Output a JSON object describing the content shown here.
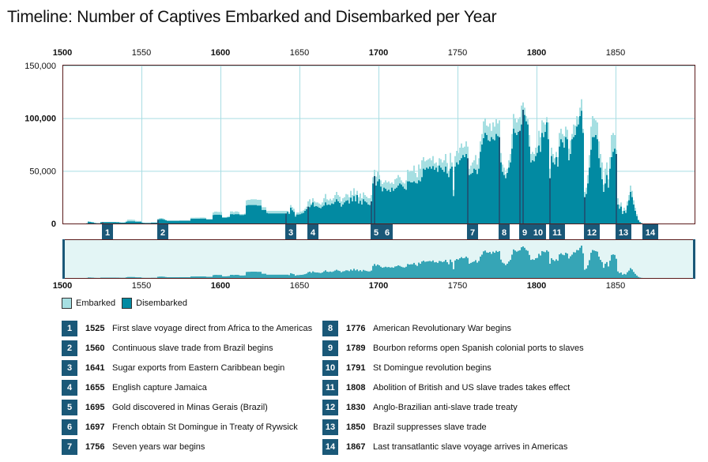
{
  "title": "Timeline: Number of Captives Embarked and Disembarked per Year",
  "colors": {
    "embarked": "#a6dfe2",
    "disembarked": "#028aa2",
    "event": "#1a5878",
    "grid": "#a9dde3",
    "frame": "#5a1a1a",
    "overview_bg": "#e3f5f5",
    "overview_fill": "#36a5b6"
  },
  "legend": {
    "embarked": "Embarked",
    "disembarked": "Disembarked"
  },
  "chart_data": {
    "type": "bar",
    "stacking": "overlay",
    "xlabel": "",
    "ylabel": "",
    "xlim": [
      1500,
      1900
    ],
    "ylim": [
      0,
      150000
    ],
    "grid": true,
    "legend_placement": "bottom-left",
    "x_ticks": [
      "1500",
      "1550",
      "1600",
      "1650",
      "1700",
      "1750",
      "1800",
      "1850"
    ],
    "y_ticks": [
      "0",
      "50,000",
      "100,000",
      "150,000"
    ],
    "overview_x_ticks": [
      "1500",
      "1550",
      "1600",
      "1650",
      "1700",
      "1750",
      "1800",
      "1850"
    ],
    "series": [
      {
        "name": "Embarked",
        "values_by_decade": {
          "1500": [
            0,
            0,
            0,
            0,
            0,
            0,
            0,
            0,
            0,
            0
          ],
          "1510": [
            0,
            0,
            0,
            0,
            0,
            300,
            2000,
            1800,
            1400,
            1200
          ],
          "1520": [
            600,
            400,
            300,
            300,
            1400,
            1400,
            1400,
            1400,
            1400,
            1400
          ],
          "1530": [
            1400,
            1400,
            1400,
            1400,
            1300,
            1300,
            1000,
            900,
            900,
            1000
          ],
          "1540": [
            2500,
            3700,
            3700,
            3700,
            3600,
            3500,
            2600,
            2400,
            2400,
            2400
          ],
          "1550": [
            900,
            700,
            600,
            600,
            600,
            600,
            900,
            900,
            900,
            900
          ],
          "1560": [
            4500,
            5000,
            5200,
            5000,
            4500,
            3500,
            2800,
            2800,
            2800,
            2800
          ],
          "1570": [
            2800,
            2800,
            2800,
            2800,
            2900,
            2900,
            2900,
            2900,
            2900,
            2900
          ],
          "1580": [
            2900,
            5500,
            5500,
            5500,
            5600,
            5600,
            5600,
            5700,
            5700,
            5700
          ],
          "1590": [
            5500,
            4300,
            4300,
            4300,
            4300,
            10500,
            11300,
            11300,
            11000,
            11000
          ],
          "1600": [
            11000,
            6000,
            6000,
            6000,
            6500,
            7000,
            11500,
            11500,
            10800,
            11500
          ],
          "1610": [
            11500,
            11000,
            9000,
            9000,
            9000,
            9500,
            22000,
            22500,
            22500,
            23000
          ],
          "1620": [
            23000,
            23000,
            23000,
            22500,
            22500,
            22500,
            15500,
            15500,
            15500,
            12000
          ],
          "1630": [
            12000,
            12000,
            12000,
            12000,
            12000,
            12000,
            12000,
            12000,
            12000,
            12000
          ],
          "1640": [
            12000,
            12000,
            12000,
            10500,
            17500,
            15500,
            14000,
            8500,
            10500,
            10500
          ],
          "1650": [
            11300,
            11500,
            12500,
            14000,
            16000,
            21000,
            23000,
            19000,
            24000,
            21000
          ],
          "1660": [
            20000,
            20000,
            19000,
            18000,
            20000,
            24000,
            28000,
            23000,
            22000,
            23500
          ],
          "1670": [
            22000,
            24000,
            27000,
            30000,
            27000,
            25500,
            21000,
            24000,
            25000,
            28000
          ],
          "1680": [
            27500,
            25000,
            31000,
            27000,
            33500,
            27500,
            31000,
            25000,
            28500,
            24000
          ],
          "1690": [
            29500,
            27000,
            25500,
            24000,
            24000,
            27000,
            44000,
            51000,
            44500,
            49000
          ],
          "1700": [
            46000,
            41000,
            37500,
            39000,
            41000,
            39000,
            40000,
            38000,
            39000,
            37500
          ],
          "1710": [
            42000,
            43000,
            46000,
            44000,
            41000,
            39000,
            38000,
            41000,
            51000,
            49000
          ],
          "1720": [
            50000,
            50000,
            55000,
            48000,
            44000,
            56000,
            52000,
            60000,
            63000,
            59000
          ],
          "1730": [
            60000,
            61000,
            62000,
            60000,
            64000,
            57000,
            58000,
            55000,
            62000,
            61000
          ],
          "1740": [
            58000,
            60000,
            66000,
            57500,
            50000,
            67000,
            58000,
            32000,
            64000,
            69000
          ],
          "1750": [
            67000,
            72000,
            76000,
            72000,
            73000,
            78000,
            73000,
            52000,
            55000,
            58000
          ],
          "1760": [
            60000,
            65000,
            56000,
            62000,
            78000,
            85000,
            97000,
            100000,
            93000,
            92000
          ],
          "1770": [
            95000,
            88000,
            96000,
            92000,
            99000,
            95000,
            98000,
            67000,
            56000,
            53000
          ],
          "1780": [
            47000,
            52000,
            60000,
            66000,
            85000,
            104000,
            100000,
            96000,
            99000,
            101000
          ],
          "1790": [
            112000,
            115000,
            110000,
            102000,
            99000,
            84000,
            66000,
            68000,
            66000,
            72000
          ],
          "1800": [
            73000,
            88000,
            82000,
            98000,
            96000,
            94000,
            101000,
            96000,
            52000,
            72000
          ],
          "1810": [
            66000,
            62000,
            68000,
            63000,
            86000,
            90000,
            85000,
            83000,
            92000,
            89000
          ],
          "1820": [
            71000,
            79000,
            85000,
            94000,
            93000,
            102000,
            101000,
            110000,
            118000,
            90000
          ],
          "1830": [
            30000,
            34000,
            46000,
            65000,
            92000,
            102000,
            100000,
            98000,
            96000,
            78000
          ],
          "1840": [
            66000,
            58000,
            37000,
            52000,
            58000,
            42000,
            63000,
            84000,
            86000,
            84000
          ],
          "1850": [
            70000,
            24000,
            18000,
            20000,
            12000,
            15000,
            13000,
            21000,
            27000,
            36000
          ],
          "1860": [
            31000,
            22000,
            15000,
            9000,
            4000,
            1600,
            500,
            0,
            0,
            0
          ]
        }
      },
      {
        "name": "Disembarked",
        "values_by_decade": {
          "1500": [
            0,
            0,
            0,
            0,
            0,
            0,
            0,
            0,
            0,
            0
          ],
          "1510": [
            0,
            0,
            0,
            0,
            0,
            200,
            1700,
            1500,
            1200,
            1000
          ],
          "1520": [
            500,
            300,
            200,
            200,
            1200,
            1300,
            1300,
            1300,
            1300,
            1300
          ],
          "1530": [
            1300,
            1300,
            1300,
            1300,
            1200,
            1200,
            900,
            800,
            800,
            900
          ],
          "1540": [
            1500,
            2000,
            2000,
            2000,
            2000,
            2000,
            1600,
            1600,
            1600,
            1600
          ],
          "1550": [
            800,
            600,
            500,
            500,
            500,
            500,
            800,
            800,
            800,
            800
          ],
          "1560": [
            3500,
            4000,
            4200,
            4000,
            3500,
            3000,
            2500,
            2500,
            2500,
            2500
          ],
          "1570": [
            2500,
            2500,
            2500,
            2500,
            2600,
            2600,
            2600,
            2600,
            2600,
            2600
          ],
          "1580": [
            2600,
            4500,
            4500,
            4500,
            4500,
            4500,
            4500,
            4600,
            4600,
            4600
          ],
          "1590": [
            4600,
            3800,
            3800,
            3800,
            3800,
            8000,
            8300,
            8300,
            8300,
            8300
          ],
          "1600": [
            8000,
            5500,
            5500,
            5500,
            5800,
            6000,
            8800,
            8800,
            8500,
            8800
          ],
          "1610": [
            8800,
            8800,
            8000,
            8000,
            8000,
            8500,
            17000,
            17500,
            17500,
            17500
          ],
          "1620": [
            17500,
            17500,
            17500,
            17000,
            17000,
            17000,
            12800,
            12800,
            12800,
            10000
          ],
          "1630": [
            9500,
            9500,
            9500,
            9500,
            9500,
            9500,
            9500,
            9500,
            9500,
            9500
          ],
          "1640": [
            9500,
            9500,
            11000,
            9000,
            15000,
            12500,
            11000,
            6500,
            8500,
            8500
          ],
          "1650": [
            8800,
            9500,
            10000,
            12000,
            13500,
            16000,
            15500,
            17500,
            20000,
            16000
          ],
          "1660": [
            16500,
            16000,
            15000,
            14500,
            16000,
            17000,
            20000,
            17500,
            18000,
            17500
          ],
          "1670": [
            19000,
            18500,
            20500,
            23000,
            21000,
            19500,
            16000,
            18000,
            20000,
            21500
          ],
          "1680": [
            22000,
            19000,
            24500,
            21000,
            26000,
            21000,
            27000,
            19000,
            21500,
            18000
          ],
          "1690": [
            23000,
            21000,
            20000,
            18000,
            17500,
            21000,
            38000,
            45000,
            36000,
            40000
          ],
          "1700": [
            42000,
            35000,
            30500,
            34000,
            33000,
            31000,
            32000,
            30000,
            34000,
            31000
          ],
          "1710": [
            33000,
            34000,
            36000,
            38000,
            37000,
            35000,
            33000,
            32000,
            40000,
            40000
          ],
          "1720": [
            39000,
            39000,
            40000,
            38500,
            38000,
            41000,
            40000,
            44000,
            52000,
            51000
          ],
          "1730": [
            53000,
            52000,
            54000,
            52000,
            54500,
            51000,
            53000,
            49000,
            55000,
            53000
          ],
          "1740": [
            51000,
            49000,
            54000,
            47500,
            44000,
            52000,
            54000,
            26000,
            54000,
            58000
          ],
          "1750": [
            56000,
            60000,
            62000,
            65000,
            63000,
            66000,
            62000,
            46000,
            47000,
            48000
          ],
          "1760": [
            52000,
            51000,
            47000,
            52000,
            68000,
            75000,
            81000,
            86000,
            84000,
            79000
          ],
          "1770": [
            78000,
            82000,
            80000,
            79000,
            85000,
            83000,
            82000,
            58000,
            49000,
            46000
          ],
          "1780": [
            43000,
            48000,
            53000,
            58000,
            71000,
            90000,
            86000,
            84000,
            87000,
            88000
          ],
          "1790": [
            94000,
            108000,
            103000,
            97000,
            94000,
            73000,
            58000,
            60000,
            59000,
            64000
          ],
          "1800": [
            67000,
            74000,
            68000,
            86000,
            82000,
            87000,
            96000,
            80000,
            43000,
            64000
          ],
          "1810": [
            58000,
            56000,
            63000,
            54000,
            73000,
            80000,
            77000,
            72000,
            82000,
            80000
          ],
          "1820": [
            60000,
            66000,
            80000,
            82000,
            84000,
            92000,
            94000,
            102000,
            107000,
            86000
          ],
          "1830": [
            25000,
            28000,
            38000,
            53000,
            70000,
            82000,
            82000,
            84000,
            80000,
            62000
          ],
          "1840": [
            53000,
            42000,
            30000,
            38000,
            46000,
            34000,
            52000,
            63000,
            68000,
            71000
          ],
          "1850": [
            66000,
            18000,
            14000,
            16000,
            9000,
            12000,
            10000,
            17000,
            22000,
            30000
          ],
          "1860": [
            25000,
            18000,
            12000,
            7000,
            3000,
            1200,
            400,
            0,
            0,
            0
          ]
        }
      }
    ]
  },
  "events": [
    {
      "num": "1",
      "year": "1525",
      "text": "First slave voyage direct from Africa to the Americas"
    },
    {
      "num": "2",
      "year": "1560",
      "text": "Continuous slave trade from Brazil begins"
    },
    {
      "num": "3",
      "year": "1641",
      "text": "Sugar exports from Eastern Caribbean begin"
    },
    {
      "num": "4",
      "year": "1655",
      "text": "English capture Jamaica"
    },
    {
      "num": "5",
      "year": "1695",
      "text": "Gold discovered in Minas Gerais (Brazil)"
    },
    {
      "num": "6",
      "year": "1697",
      "text": "French obtain St Domingue in Treaty of Rywsick"
    },
    {
      "num": "7",
      "year": "1756",
      "text": "Seven years war begins"
    },
    {
      "num": "8",
      "year": "1776",
      "text": "American Revolutionary War begins"
    },
    {
      "num": "9",
      "year": "1789",
      "text": "Bourbon reforms open Spanish colonial ports to slaves"
    },
    {
      "num": "10",
      "year": "1791",
      "text": "St Domingue revolution begins"
    },
    {
      "num": "11",
      "year": "1808",
      "text": "Abolition of British and US slave trades takes effect"
    },
    {
      "num": "12",
      "year": "1830",
      "text": "Anglo-Brazilian anti-slave trade treaty"
    },
    {
      "num": "13",
      "year": "1850",
      "text": "Brazil suppresses slave trade"
    },
    {
      "num": "14",
      "year": "1867",
      "text": "Last transatlantic slave voyage arrives in Americas"
    }
  ]
}
